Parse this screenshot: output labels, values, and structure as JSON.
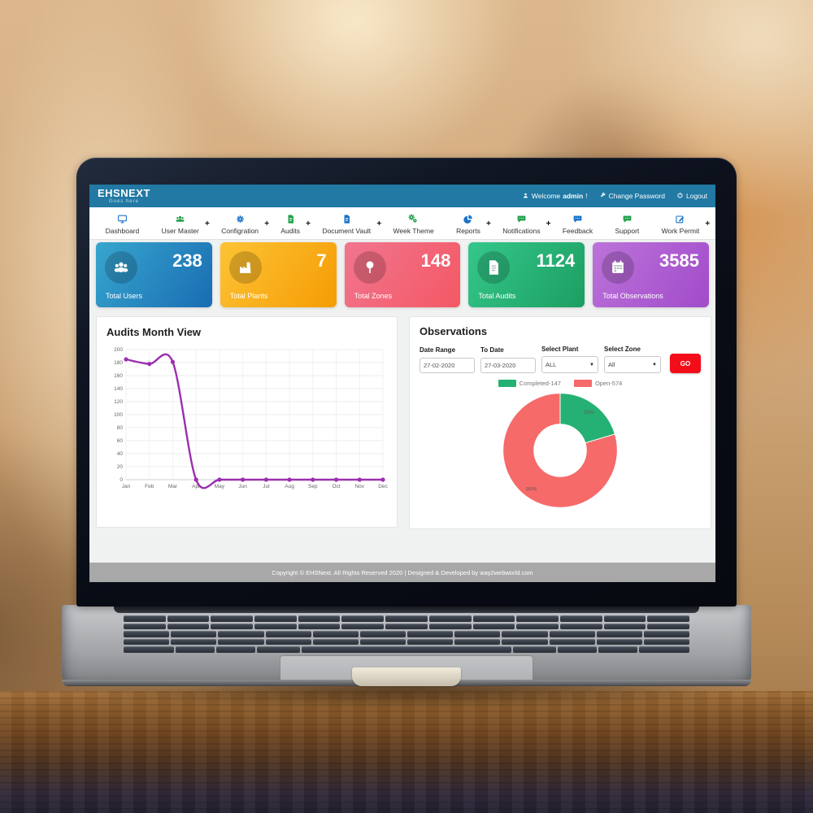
{
  "topbar": {
    "brand": "EHSNEXT",
    "brand_tagline": "Goes here",
    "welcome_prefix": "Welcome",
    "welcome_user": "admin",
    "welcome_suffix": "!",
    "change_password": "Change Password",
    "logout": "Logout"
  },
  "nav": {
    "items": [
      {
        "label": "Dashboard",
        "icon": "desktop-icon",
        "color": "#1a73c6",
        "plus": false
      },
      {
        "label": "User Master",
        "icon": "users-icon",
        "color": "#21a04c",
        "plus": true
      },
      {
        "label": "Configration",
        "icon": "gear-icon",
        "color": "#1a73c6",
        "plus": true
      },
      {
        "label": "Audits",
        "icon": "file-icon",
        "color": "#21a04c",
        "plus": true
      },
      {
        "label": "Document Vault",
        "icon": "file-icon",
        "color": "#1a73c6",
        "plus": true
      },
      {
        "label": "Week Theme",
        "icon": "gears-icon",
        "color": "#21a04c",
        "plus": false
      },
      {
        "label": "Reports",
        "icon": "pie-chart-icon",
        "color": "#1a73c6",
        "plus": true
      },
      {
        "label": "Notifications",
        "icon": "chat-icon",
        "color": "#21a04c",
        "plus": true
      },
      {
        "label": "Feedback",
        "icon": "chat-icon",
        "color": "#1a73c6",
        "plus": false
      },
      {
        "label": "Support",
        "icon": "chat-icon",
        "color": "#21a04c",
        "plus": false
      },
      {
        "label": "Work Permit",
        "icon": "edit-icon",
        "color": "#1a73c6",
        "plus": true
      }
    ]
  },
  "cards": [
    {
      "label": "Total Users",
      "value": "238",
      "icon": "users-icon",
      "gradient": [
        "#37a6ce",
        "#1a6cb2"
      ]
    },
    {
      "label": "Total Plants",
      "value": "7",
      "icon": "factory-icon",
      "gradient": [
        "#fdc335",
        "#f59c04"
      ]
    },
    {
      "label": "Total Zones",
      "value": "148",
      "icon": "map-pin-icon",
      "gradient": [
        "#f1758f",
        "#f45864"
      ]
    },
    {
      "label": "Total Audits",
      "value": "1124",
      "icon": "file-icon",
      "gradient": [
        "#35c78b",
        "#1c9e61"
      ]
    },
    {
      "label": "Total Observations",
      "value": "3585",
      "icon": "calendar-icon",
      "gradient": [
        "#bc73d9",
        "#a14bca"
      ]
    }
  ],
  "panels": {
    "observations": {
      "filters": {
        "date_range_label": "Date Range",
        "date_range_value": "27-02-2020",
        "to_date_label": "To Date",
        "to_date_value": "27-03-2020",
        "plant_label": "Select Plant",
        "plant_value": "ALL",
        "zone_label": "Select Zone",
        "zone_value": "All",
        "go_label": "GO"
      }
    }
  },
  "footer": {
    "text": "Copyright © EHSNext. All Rights Reserved 2020 | Designed & Developed by way2webworld.com"
  },
  "chart_data": [
    {
      "type": "line",
      "title": "Audits Month View",
      "categories": [
        "Jan",
        "Feb",
        "Mar",
        "Apr",
        "May",
        "Jun",
        "Jul",
        "Aug",
        "Sep",
        "Oct",
        "Nov",
        "Dec"
      ],
      "series": [
        {
          "name": "Audits",
          "values": [
            185,
            178,
            181,
            0,
            0,
            0,
            0,
            0,
            0,
            0,
            0,
            0
          ]
        }
      ],
      "ylim": [
        0,
        200
      ],
      "ytick_step": 20,
      "line_color": "#9b2fae",
      "grid": true,
      "legend": false
    },
    {
      "type": "donut",
      "title": "Observations",
      "slices": [
        {
          "label": "Completed-147",
          "value": 147,
          "pct_label": "20%",
          "color": "#25b173"
        },
        {
          "label": "Open-574",
          "value": 574,
          "pct_label": "80%",
          "color": "#f66a6a"
        }
      ],
      "legend_position": "top"
    }
  ]
}
